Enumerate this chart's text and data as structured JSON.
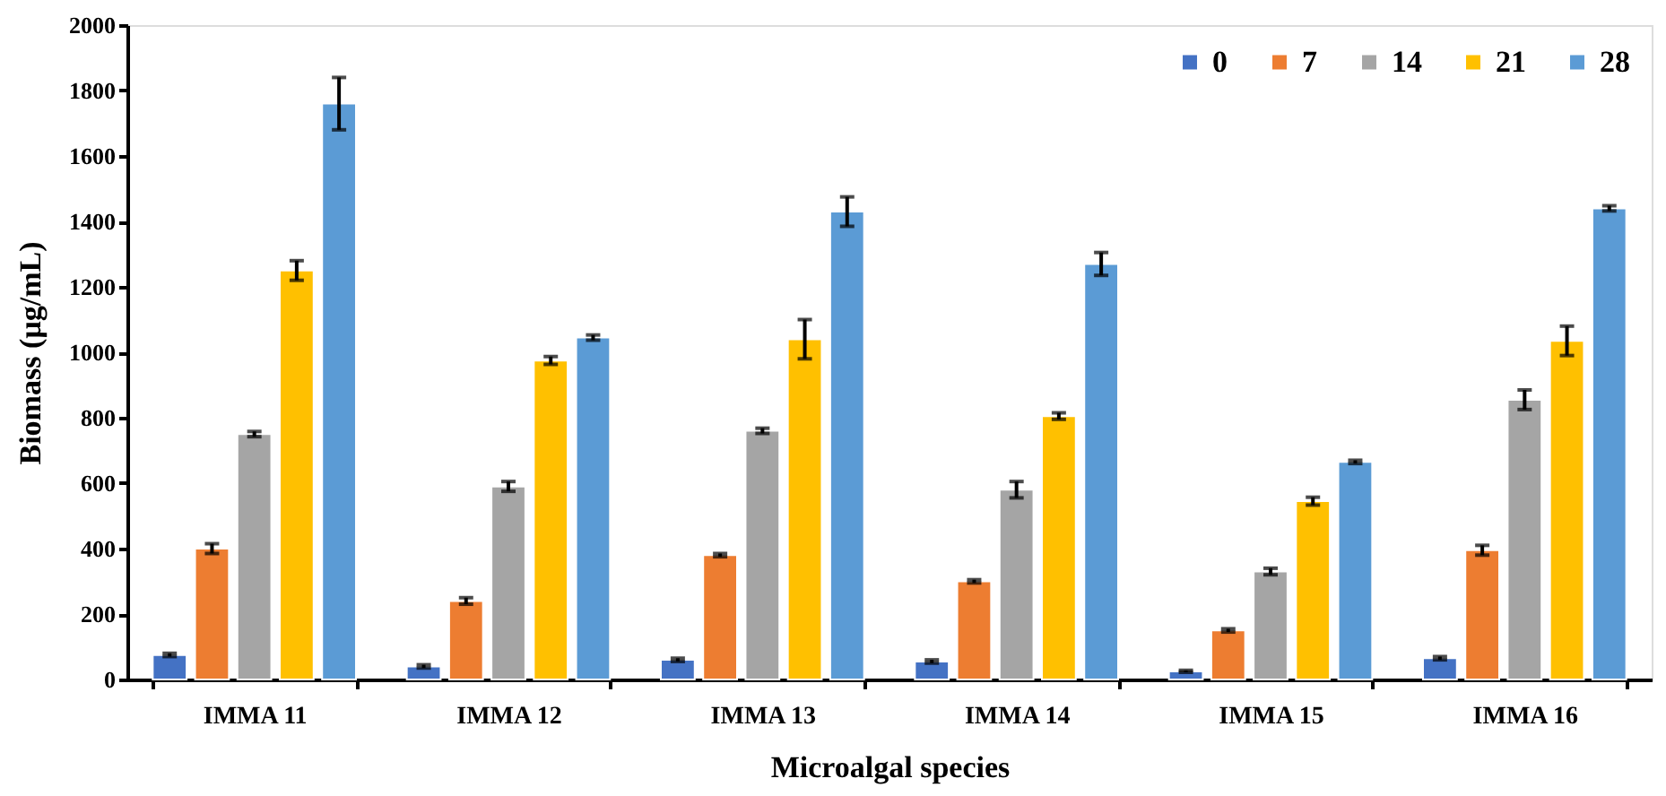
{
  "chart_data": {
    "type": "bar",
    "xlabel": "Microalgal species",
    "ylabel": "Biomass (µg/mL)",
    "categories": [
      "IMMA 11",
      "IMMA 12",
      "IMMA 13",
      "IMMA 14",
      "IMMA 15",
      "IMMA 16"
    ],
    "series": [
      {
        "name": "0",
        "color": "#4472c4",
        "values": [
          75,
          40,
          60,
          55,
          25,
          65
        ],
        "errors": [
          5,
          5,
          5,
          5,
          3,
          5
        ]
      },
      {
        "name": "7",
        "color": "#ed7d31",
        "values": [
          400,
          240,
          380,
          300,
          150,
          395
        ],
        "errors": [
          15,
          10,
          5,
          5,
          5,
          15
        ]
      },
      {
        "name": "14",
        "color": "#a5a5a5",
        "values": [
          750,
          590,
          760,
          580,
          330,
          855
        ],
        "errors": [
          8,
          15,
          8,
          25,
          10,
          30
        ]
      },
      {
        "name": "21",
        "color": "#ffc000",
        "values": [
          1250,
          975,
          1040,
          805,
          545,
          1035
        ],
        "errors": [
          30,
          12,
          60,
          10,
          12,
          45
        ]
      },
      {
        "name": "28",
        "color": "#5b9bd5",
        "values": [
          1760,
          1045,
          1430,
          1270,
          665,
          1440
        ],
        "errors": [
          80,
          8,
          45,
          35,
          5,
          8
        ]
      }
    ],
    "ylim": [
      0,
      2000
    ],
    "yticks": [
      0,
      200,
      400,
      600,
      800,
      1000,
      1200,
      1400,
      1600,
      1800,
      2000
    ],
    "grid": false,
    "legend": "top right"
  }
}
